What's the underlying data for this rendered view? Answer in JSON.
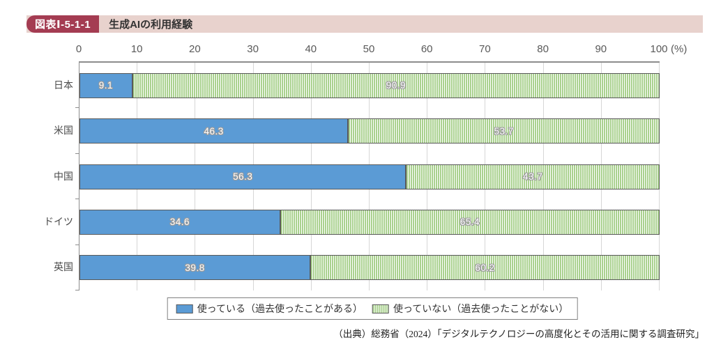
{
  "header": {
    "badge": "図表Ⅰ-5-1-1",
    "title": "生成AIの利用経験",
    "badge_color": "#a43c52",
    "strip_color": "#e8d2cd"
  },
  "chart_data": {
    "type": "bar",
    "orientation": "horizontal",
    "stacked": true,
    "categories": [
      "日本",
      "米国",
      "中国",
      "ドイツ",
      "英国"
    ],
    "series": [
      {
        "name": "使っている（過去使ったことがある）",
        "color": "#5b9bd5",
        "pattern": "solid",
        "values": [
          9.1,
          46.3,
          56.3,
          34.6,
          39.8
        ]
      },
      {
        "name": "使っていない（過去使ったことがない）",
        "color": "#a9d18e",
        "pattern": "vertical-stripes",
        "stripe_color": "#ffffff",
        "values": [
          90.9,
          53.7,
          43.7,
          65.4,
          60.2
        ]
      }
    ],
    "value_labels": [
      [
        "9.1",
        "90.9"
      ],
      [
        "46.3",
        "53.7"
      ],
      [
        "56.3",
        "43.7"
      ],
      [
        "34.6",
        "65.4"
      ],
      [
        "39.8",
        "60.2"
      ]
    ],
    "x_axis": {
      "min": 0,
      "max": 100,
      "ticks": [
        0,
        10,
        20,
        30,
        40,
        50,
        60,
        70,
        80,
        90,
        100
      ],
      "unit_label": "(%)",
      "position": "top"
    },
    "grid": true,
    "legend_position": "bottom"
  },
  "source": "（出典）総務省（2024）「デジタルテクノロジーの高度化とその活用に関する調査研究」"
}
